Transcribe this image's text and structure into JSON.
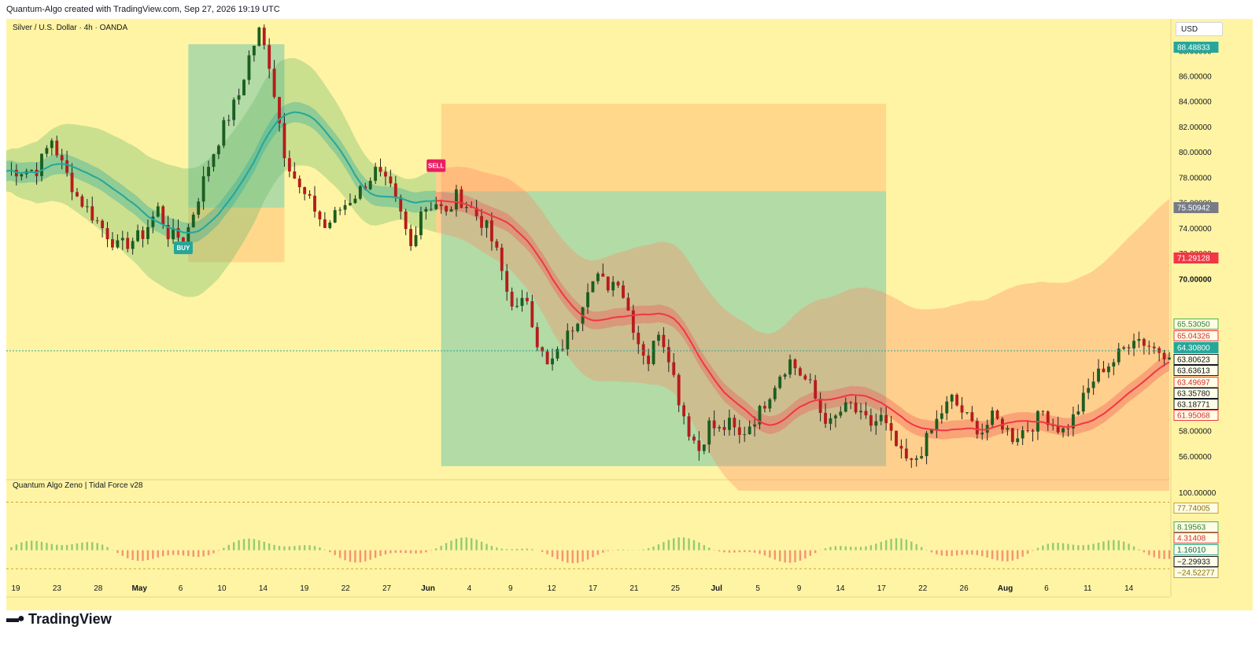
{
  "header": {
    "attribution": "Quantum-Algo created with TradingView.com, Sep 27, 2026 19:19 UTC"
  },
  "brand": {
    "logo_text": "TradingView",
    "logo_icon": "tradingview-logo-icon"
  },
  "colors": {
    "background": "#fff4a3",
    "bull_teal": "#26a69a",
    "bear_red": "#f23645",
    "profit_zone": "#a5d6a7",
    "loss_zone": "#ffcc80"
  },
  "chart_data": [
    {
      "type": "candlestick",
      "title": "Silver / U.S. Dollar · 4h · OANDA",
      "currency": "USD",
      "ylim": [
        54.5,
        90.5
      ],
      "y_ticks": [
        56,
        58,
        70,
        72,
        74,
        76,
        78,
        80,
        82,
        84,
        86,
        88
      ],
      "y_tick_labels": [
        "56.00000",
        "58.00000",
        "70.00000",
        "72.00000",
        "74.00000",
        "76.00000",
        "78.00000",
        "80.00000",
        "82.00000",
        "84.00000",
        "86.00000",
        "88.00000"
      ],
      "x_tick_labels": [
        "19",
        "23",
        "28",
        "May",
        "6",
        "10",
        "14",
        "19",
        "22",
        "27",
        "Jun",
        "4",
        "9",
        "12",
        "17",
        "21",
        "25",
        "Jul",
        "5",
        "9",
        "14",
        "17",
        "22",
        "26",
        "Aug",
        "6",
        "11",
        "14"
      ],
      "price_path": [
        [
          0,
          78.5
        ],
        [
          6,
          78.6
        ],
        [
          9,
          81
        ],
        [
          11,
          79
        ],
        [
          14,
          76.5
        ],
        [
          17,
          75
        ],
        [
          20,
          73.5
        ],
        [
          22,
          72.5
        ],
        [
          24,
          72.8
        ],
        [
          27,
          73.5
        ],
        [
          30,
          75.5
        ],
        [
          32,
          73.5
        ],
        [
          35,
          73.2
        ],
        [
          36,
          74
        ],
        [
          40,
          79
        ],
        [
          43,
          82
        ],
        [
          46,
          84.5
        ],
        [
          48,
          87.5
        ],
        [
          50,
          89.5
        ],
        [
          52,
          87
        ],
        [
          55,
          80
        ],
        [
          58,
          77
        ],
        [
          61,
          75.5
        ],
        [
          63,
          74
        ],
        [
          66,
          75.5
        ],
        [
          70,
          77
        ],
        [
          73,
          78.5
        ],
        [
          76,
          77
        ],
        [
          78,
          75
        ],
        [
          80,
          72.5
        ],
        [
          82,
          75.5
        ],
        [
          85,
          76
        ],
        [
          87,
          75
        ],
        [
          89,
          76.5
        ],
        [
          92,
          75.5
        ],
        [
          95,
          74
        ],
        [
          97,
          72
        ],
        [
          99,
          69
        ],
        [
          101,
          67.5
        ],
        [
          103,
          68.5
        ],
        [
          105,
          65
        ],
        [
          107,
          63
        ],
        [
          109,
          64
        ],
        [
          111,
          65.5
        ],
        [
          113,
          67
        ],
        [
          115,
          69.5
        ],
        [
          117,
          70
        ],
        [
          119,
          69.5
        ],
        [
          121,
          70
        ],
        [
          123,
          67.5
        ],
        [
          125,
          65
        ],
        [
          127,
          63.5
        ],
        [
          129,
          66
        ],
        [
          131,
          64
        ],
        [
          133,
          60.5
        ],
        [
          135,
          58
        ],
        [
          137,
          56.5
        ],
        [
          139,
          58.5
        ],
        [
          141,
          58
        ],
        [
          143,
          58.5
        ],
        [
          145,
          57.5
        ],
        [
          147,
          58.5
        ],
        [
          149,
          59.5
        ],
        [
          151,
          61
        ],
        [
          153,
          62.5
        ],
        [
          155,
          63.5
        ],
        [
          157,
          62.5
        ],
        [
          159,
          61.5
        ],
        [
          161,
          59.5
        ],
        [
          163,
          58.5
        ],
        [
          165,
          59.5
        ],
        [
          167,
          60
        ],
        [
          169,
          59
        ],
        [
          171,
          58.5
        ],
        [
          173,
          59
        ],
        [
          175,
          57.5
        ],
        [
          177,
          56
        ],
        [
          179,
          55.3
        ],
        [
          181,
          56.5
        ],
        [
          183,
          58
        ],
        [
          185,
          59.5
        ],
        [
          187,
          60.5
        ],
        [
          189,
          59.5
        ],
        [
          191,
          58.5
        ],
        [
          193,
          58
        ],
        [
          195,
          59
        ],
        [
          197,
          58.5
        ],
        [
          199,
          57.5
        ],
        [
          201,
          58
        ],
        [
          203,
          58.5
        ],
        [
          205,
          59.5
        ],
        [
          207,
          58.5
        ],
        [
          209,
          58
        ],
        [
          211,
          59
        ],
        [
          213,
          60.5
        ],
        [
          215,
          62
        ],
        [
          217,
          63
        ],
        [
          219,
          63.5
        ],
        [
          221,
          64.5
        ],
        [
          223,
          65.5
        ],
        [
          225,
          65
        ],
        [
          227,
          64.5
        ],
        [
          229,
          64.2
        ],
        [
          230,
          64.3
        ]
      ],
      "current_price": 64.308,
      "price_labels": [
        {
          "value": 88.48833,
          "label": "88.48833",
          "kind": "high"
        },
        {
          "value": 75.50942,
          "label": "75.50942",
          "kind": "level"
        },
        {
          "value": 71.29128,
          "label": "71.29128",
          "kind": "red"
        },
        {
          "value": 70.0,
          "label": "70.00000",
          "kind": "tick-bold"
        },
        {
          "value": 65.5305,
          "label": "65.53050",
          "kind": "green-outline"
        },
        {
          "value": 65.04326,
          "label": "65.04326",
          "kind": "red-outline"
        },
        {
          "value": 64.308,
          "label": "64.30800",
          "kind": "teal"
        },
        {
          "value": 63.80623,
          "label": "63.80623",
          "kind": "black-outline"
        },
        {
          "value": 63.63613,
          "label": "63.63613",
          "kind": "black-outline"
        },
        {
          "value": 63.49697,
          "label": "63.49697",
          "kind": "red-outline"
        },
        {
          "value": 63.3578,
          "label": "63.35780",
          "kind": "black-outline"
        },
        {
          "value": 63.18771,
          "label": "63.18771",
          "kind": "black-outline"
        },
        {
          "value": 61.95068,
          "label": "61.95068",
          "kind": "red-outline"
        }
      ],
      "signals": [
        {
          "label": "BUY",
          "x": 35,
          "price": 73.3
        },
        {
          "label": "SELL",
          "x": 85,
          "price": 77.8
        }
      ],
      "trade_boxes": [
        {
          "x0": 36,
          "x1": 55,
          "entry": 75.6,
          "target": 88.5,
          "stop": 71.3,
          "direction": "long"
        },
        {
          "x0": 86,
          "x1": 174,
          "entry": 76.9,
          "target": 55.2,
          "stop": 83.8,
          "direction": "short"
        }
      ]
    },
    {
      "type": "oscillator",
      "title": "Quantum Algo Zeno | Tidal Force v28",
      "ylim": [
        -40,
        105
      ],
      "value_labels": [
        {
          "value": 100,
          "label": "100.00000",
          "kind": "tick"
        },
        {
          "value": 77.74005,
          "label": "77.74005",
          "kind": "yellow-outline"
        },
        {
          "value": 8.19563,
          "label": "8.19563",
          "kind": "green-outline"
        },
        {
          "value": 4.31408,
          "label": "4.31408",
          "kind": "red-outline"
        },
        {
          "value": 1.1601,
          "label": "1.16010",
          "kind": "teal-outline"
        },
        {
          "value": -2.29933,
          "label": "−2.29933",
          "kind": "black-outline"
        },
        {
          "value": -24.52277,
          "label": "−24.52277",
          "kind": "yellow-outline"
        }
      ]
    }
  ]
}
